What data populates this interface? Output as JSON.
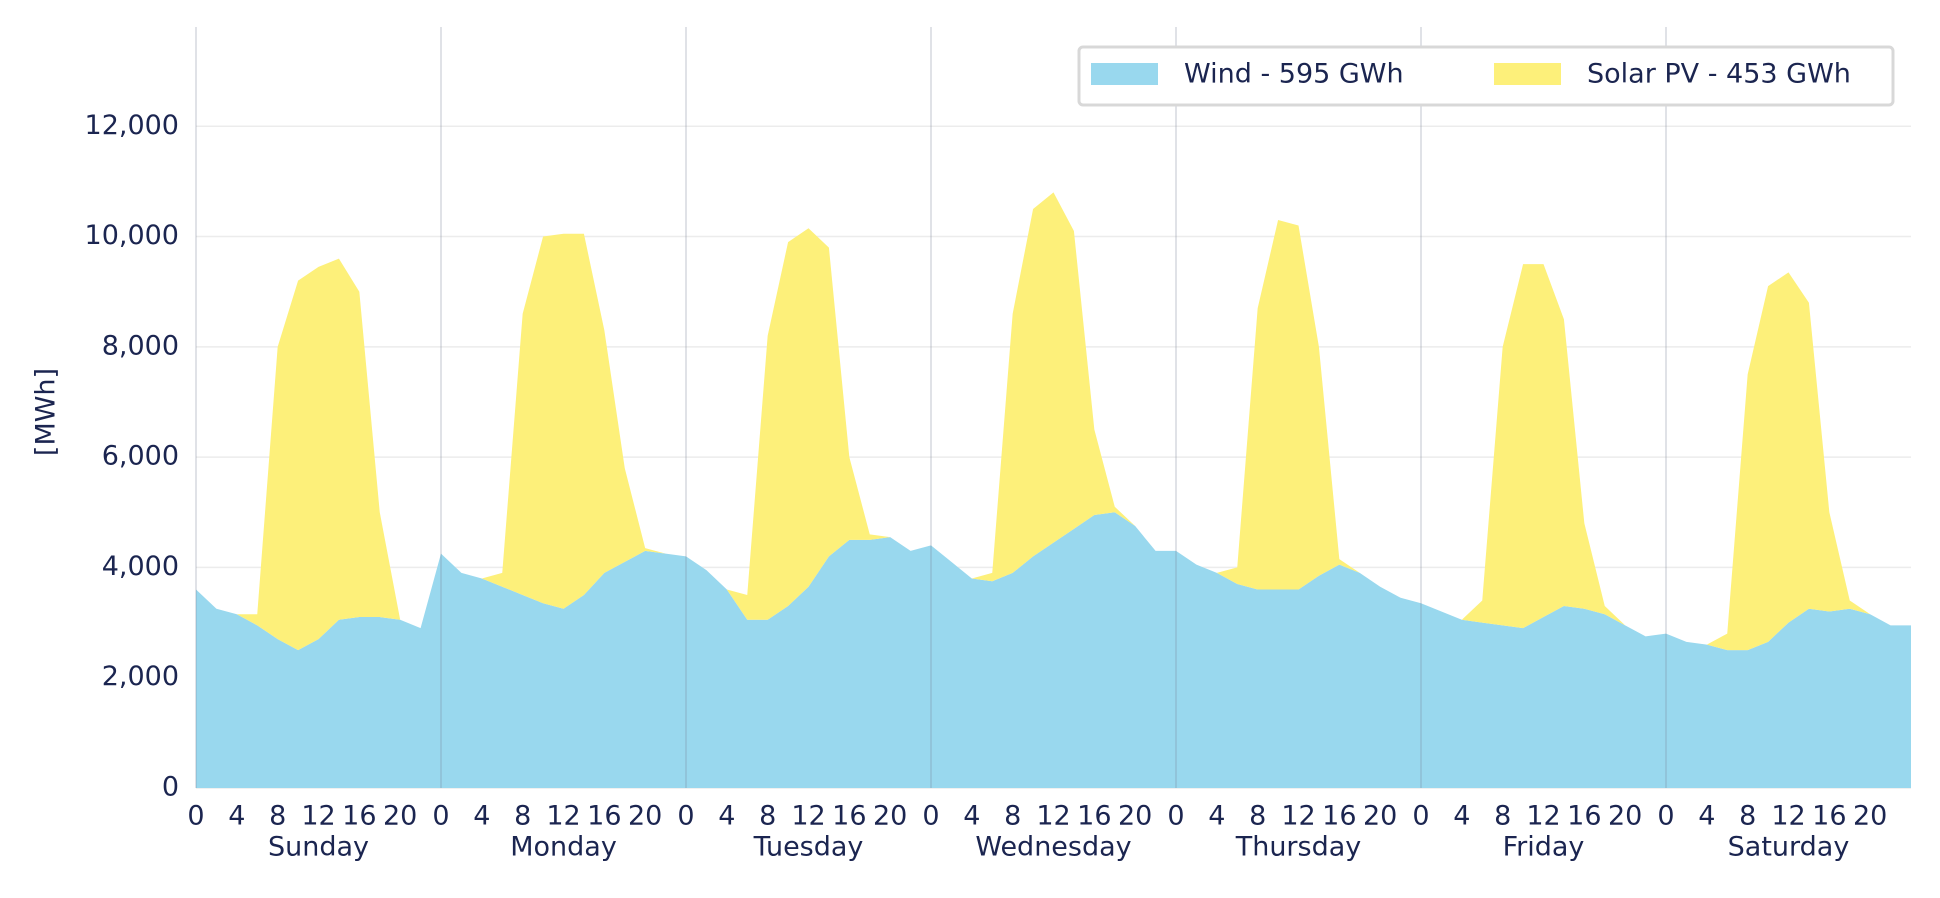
{
  "chart_data": {
    "type": "stacked_area",
    "y_label": "[MWh]",
    "x": [
      0,
      2,
      4,
      6,
      8,
      10,
      12,
      14,
      16,
      18,
      20,
      22,
      24,
      26,
      28,
      30,
      32,
      34,
      36,
      38,
      40,
      42,
      44,
      46,
      48,
      50,
      52,
      54,
      56,
      58,
      60,
      62,
      64,
      66,
      68,
      70,
      72,
      74,
      76,
      78,
      80,
      82,
      84,
      86,
      88,
      90,
      92,
      94,
      96,
      98,
      100,
      102,
      104,
      106,
      108,
      110,
      112,
      114,
      116,
      118,
      120,
      122,
      124,
      126,
      128,
      130,
      132,
      134,
      136,
      138,
      140,
      142,
      144,
      146,
      148,
      150,
      152,
      154,
      156,
      158,
      160,
      162,
      164,
      166,
      168
    ],
    "series": [
      {
        "name": "Wind - 595 GWh",
        "color": "#99d8ee",
        "values": [
          3600,
          3250,
          3150,
          2950,
          2700,
          2500,
          2700,
          3050,
          3100,
          3100,
          3050,
          2900,
          4250,
          3900,
          3800,
          3650,
          3500,
          3350,
          3250,
          3500,
          3900,
          4100,
          4300,
          4250,
          4200,
          3950,
          3600,
          3050,
          3050,
          3300,
          3650,
          4200,
          4500,
          4500,
          4550,
          4300,
          4400,
          4100,
          3800,
          3750,
          3900,
          4200,
          4450,
          4700,
          4950,
          5000,
          4750,
          4300,
          4300,
          4050,
          3900,
          3700,
          3600,
          3600,
          3600,
          3850,
          4050,
          3900,
          3650,
          3450,
          3350,
          3200,
          3050,
          3000,
          2950,
          2900,
          3100,
          3300,
          3250,
          3150,
          2950,
          2750,
          2800,
          2650,
          2600,
          2500,
          2500,
          2650,
          3000,
          3250,
          3200,
          3250,
          3150,
          2950,
          2950
        ]
      },
      {
        "name": "Solar PV - 453 GWh",
        "color": "#fdf07a",
        "values": [
          0,
          0,
          0,
          200,
          5300,
          6700,
          6750,
          6550,
          5900,
          1900,
          0,
          0,
          0,
          0,
          0,
          250,
          5100,
          6650,
          6800,
          6550,
          4400,
          1700,
          50,
          0,
          0,
          0,
          0,
          450,
          5150,
          6600,
          6500,
          5600,
          1500,
          100,
          0,
          0,
          0,
          0,
          0,
          150,
          4700,
          6300,
          6350,
          5400,
          1550,
          100,
          0,
          0,
          0,
          0,
          0,
          300,
          5100,
          6700,
          6600,
          4150,
          100,
          0,
          0,
          0,
          0,
          0,
          0,
          400,
          5050,
          6600,
          6400,
          5200,
          1550,
          150,
          0,
          0,
          0,
          0,
          0,
          300,
          5000,
          6450,
          6350,
          5550,
          1800,
          150,
          0,
          0,
          0
        ]
      }
    ],
    "xlim": [
      0,
      168
    ],
    "xticks": [
      {
        "value": 0,
        "label": "0"
      },
      {
        "value": 4,
        "label": "4"
      },
      {
        "value": 8,
        "label": "8"
      },
      {
        "value": 12,
        "label": "12"
      },
      {
        "value": 16,
        "label": "16"
      },
      {
        "value": 20,
        "label": "20"
      },
      {
        "value": 24,
        "label": "0"
      },
      {
        "value": 28,
        "label": "4"
      },
      {
        "value": 32,
        "label": "8"
      },
      {
        "value": 36,
        "label": "12"
      },
      {
        "value": 40,
        "label": "16"
      },
      {
        "value": 44,
        "label": "20"
      },
      {
        "value": 48,
        "label": "0"
      },
      {
        "value": 52,
        "label": "4"
      },
      {
        "value": 56,
        "label": "8"
      },
      {
        "value": 60,
        "label": "12"
      },
      {
        "value": 64,
        "label": "16"
      },
      {
        "value": 68,
        "label": "20"
      },
      {
        "value": 72,
        "label": "0"
      },
      {
        "value": 76,
        "label": "4"
      },
      {
        "value": 80,
        "label": "8"
      },
      {
        "value": 84,
        "label": "12"
      },
      {
        "value": 88,
        "label": "16"
      },
      {
        "value": 92,
        "label": "20"
      },
      {
        "value": 96,
        "label": "0"
      },
      {
        "value": 100,
        "label": "4"
      },
      {
        "value": 104,
        "label": "8"
      },
      {
        "value": 108,
        "label": "12"
      },
      {
        "value": 112,
        "label": "16"
      },
      {
        "value": 116,
        "label": "20"
      },
      {
        "value": 120,
        "label": "0"
      },
      {
        "value": 124,
        "label": "4"
      },
      {
        "value": 128,
        "label": "8"
      },
      {
        "value": 132,
        "label": "12"
      },
      {
        "value": 136,
        "label": "16"
      },
      {
        "value": 140,
        "label": "20"
      },
      {
        "value": 144,
        "label": "0"
      },
      {
        "value": 148,
        "label": "4"
      },
      {
        "value": 152,
        "label": "8"
      },
      {
        "value": 156,
        "label": "12"
      },
      {
        "value": 160,
        "label": "16"
      },
      {
        "value": 164,
        "label": "20"
      }
    ],
    "day_labels": [
      "Sunday",
      "Monday",
      "Tuesday",
      "Wednesday",
      "Thursday",
      "Friday",
      "Saturday"
    ],
    "ylim": [
      0,
      13800
    ],
    "yticks": [
      0,
      {
        "value": 2000,
        "label": "2,000"
      },
      {
        "value": 4000,
        "label": "4,000"
      },
      {
        "value": 6000,
        "label": "6,000"
      },
      {
        "value": 8000,
        "label": "8,000"
      },
      {
        "value": 10000,
        "label": "10,000"
      },
      {
        "value": 12000,
        "label": "12,000"
      }
    ],
    "grid": true,
    "legend": "upper right"
  }
}
